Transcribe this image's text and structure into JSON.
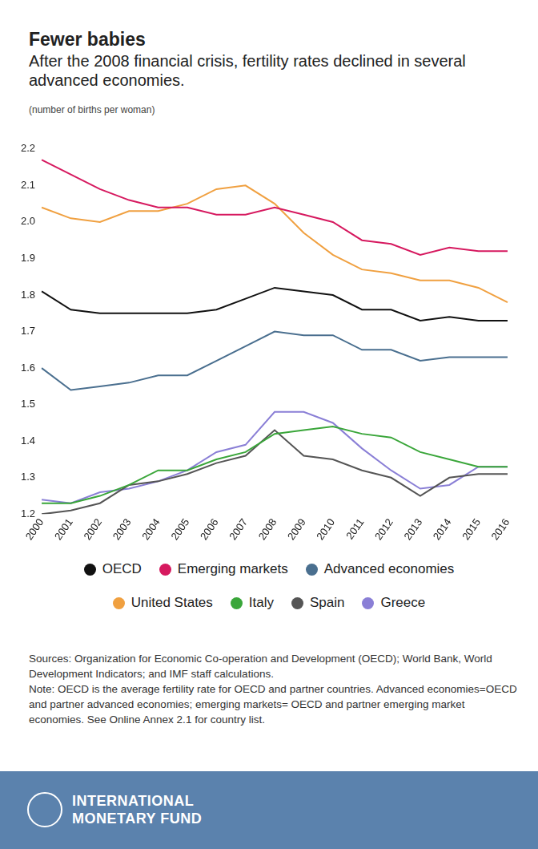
{
  "chart_data": {
    "type": "line",
    "title": "Fewer babies",
    "subtitle": "After the 2008 financial crisis, fertility rates declined in several advanced economies.",
    "y_label": "(number of births per woman)",
    "categories": [
      "2000",
      "2001",
      "2002",
      "2003",
      "2004",
      "2005",
      "2006",
      "2007",
      "2008",
      "2009",
      "2010",
      "2011",
      "2012",
      "2013",
      "2014",
      "2015",
      "2016"
    ],
    "series": [
      {
        "name": "OECD",
        "color": "#111111",
        "values": [
          1.81,
          1.76,
          1.75,
          1.75,
          1.75,
          1.75,
          1.76,
          1.79,
          1.82,
          1.81,
          1.8,
          1.76,
          1.76,
          1.73,
          1.74,
          1.73,
          1.73
        ]
      },
      {
        "name": "Emerging markets",
        "color": "#d6195f",
        "values": [
          2.17,
          2.13,
          2.09,
          2.06,
          2.04,
          2.04,
          2.02,
          2.02,
          2.04,
          2.02,
          2.0,
          1.95,
          1.94,
          1.91,
          1.93,
          1.92,
          1.92
        ]
      },
      {
        "name": "Advanced economies",
        "color": "#4a6f8f",
        "values": [
          1.6,
          1.54,
          1.55,
          1.56,
          1.58,
          1.58,
          1.62,
          1.66,
          1.7,
          1.69,
          1.69,
          1.65,
          1.65,
          1.62,
          1.63,
          1.63,
          1.63
        ]
      },
      {
        "name": "United States",
        "color": "#f0a040",
        "values": [
          2.04,
          2.01,
          2.0,
          2.03,
          2.03,
          2.05,
          2.09,
          2.1,
          2.05,
          1.97,
          1.91,
          1.87,
          1.86,
          1.84,
          1.84,
          1.82,
          1.78
        ]
      },
      {
        "name": "Italy",
        "color": "#3aa63a",
        "values": [
          1.23,
          1.23,
          1.25,
          1.28,
          1.32,
          1.32,
          1.35,
          1.37,
          1.42,
          1.43,
          1.44,
          1.42,
          1.41,
          1.37,
          1.35,
          1.33,
          1.33
        ]
      },
      {
        "name": "Spain",
        "color": "#555555",
        "values": [
          1.2,
          1.21,
          1.23,
          1.28,
          1.29,
          1.31,
          1.34,
          1.36,
          1.43,
          1.36,
          1.35,
          1.32,
          1.3,
          1.25,
          1.3,
          1.31,
          1.31
        ]
      },
      {
        "name": "Greece",
        "color": "#8a7fd6",
        "values": [
          1.24,
          1.23,
          1.26,
          1.27,
          1.29,
          1.32,
          1.37,
          1.39,
          1.48,
          1.48,
          1.45,
          1.38,
          1.32,
          1.27,
          1.28,
          1.33,
          1.33
        ]
      }
    ],
    "ylim": [
      1.2,
      2.2
    ],
    "yticks": [
      1.2,
      1.3,
      1.4,
      1.5,
      1.6,
      1.7,
      1.8,
      1.9,
      {
        "value": 2,
        "label": "2.0"
      },
      2.1,
      2.2
    ],
    "grid": false,
    "legend": "bottom",
    "sources": "Sources: Organization for Economic Co-operation and Development (OECD); World Bank, World Development Indicators; and IMF staff calculations.",
    "note": "Note: OECD is the average fertility rate for OECD and partner countries. Advanced economies=OECD and partner advanced economies; emerging markets= OECD and partner emerging market economies. See Online Annex 2.1 for country list.",
    "footer": [
      "INTERNATIONAL",
      "MONETARY FUND"
    ]
  }
}
